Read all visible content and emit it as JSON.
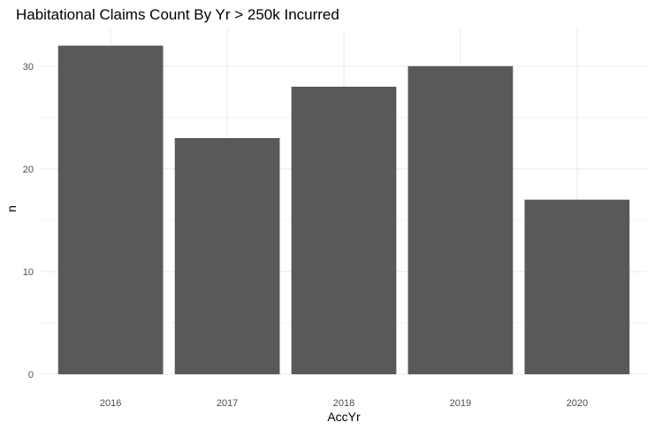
{
  "chart_data": {
    "type": "bar",
    "title": "Habitational Claims Count By Yr > 250k Incurred",
    "xlabel": "AccYr",
    "ylabel": "n",
    "categories": [
      "2016",
      "2017",
      "2018",
      "2019",
      "2020"
    ],
    "values": [
      32,
      23,
      28,
      30,
      17
    ],
    "ylim": [
      0,
      33.6
    ],
    "yticks": [
      0,
      10,
      20,
      30
    ],
    "grid": true,
    "bar_color": "#595959",
    "grid_color": "#ebebeb"
  }
}
